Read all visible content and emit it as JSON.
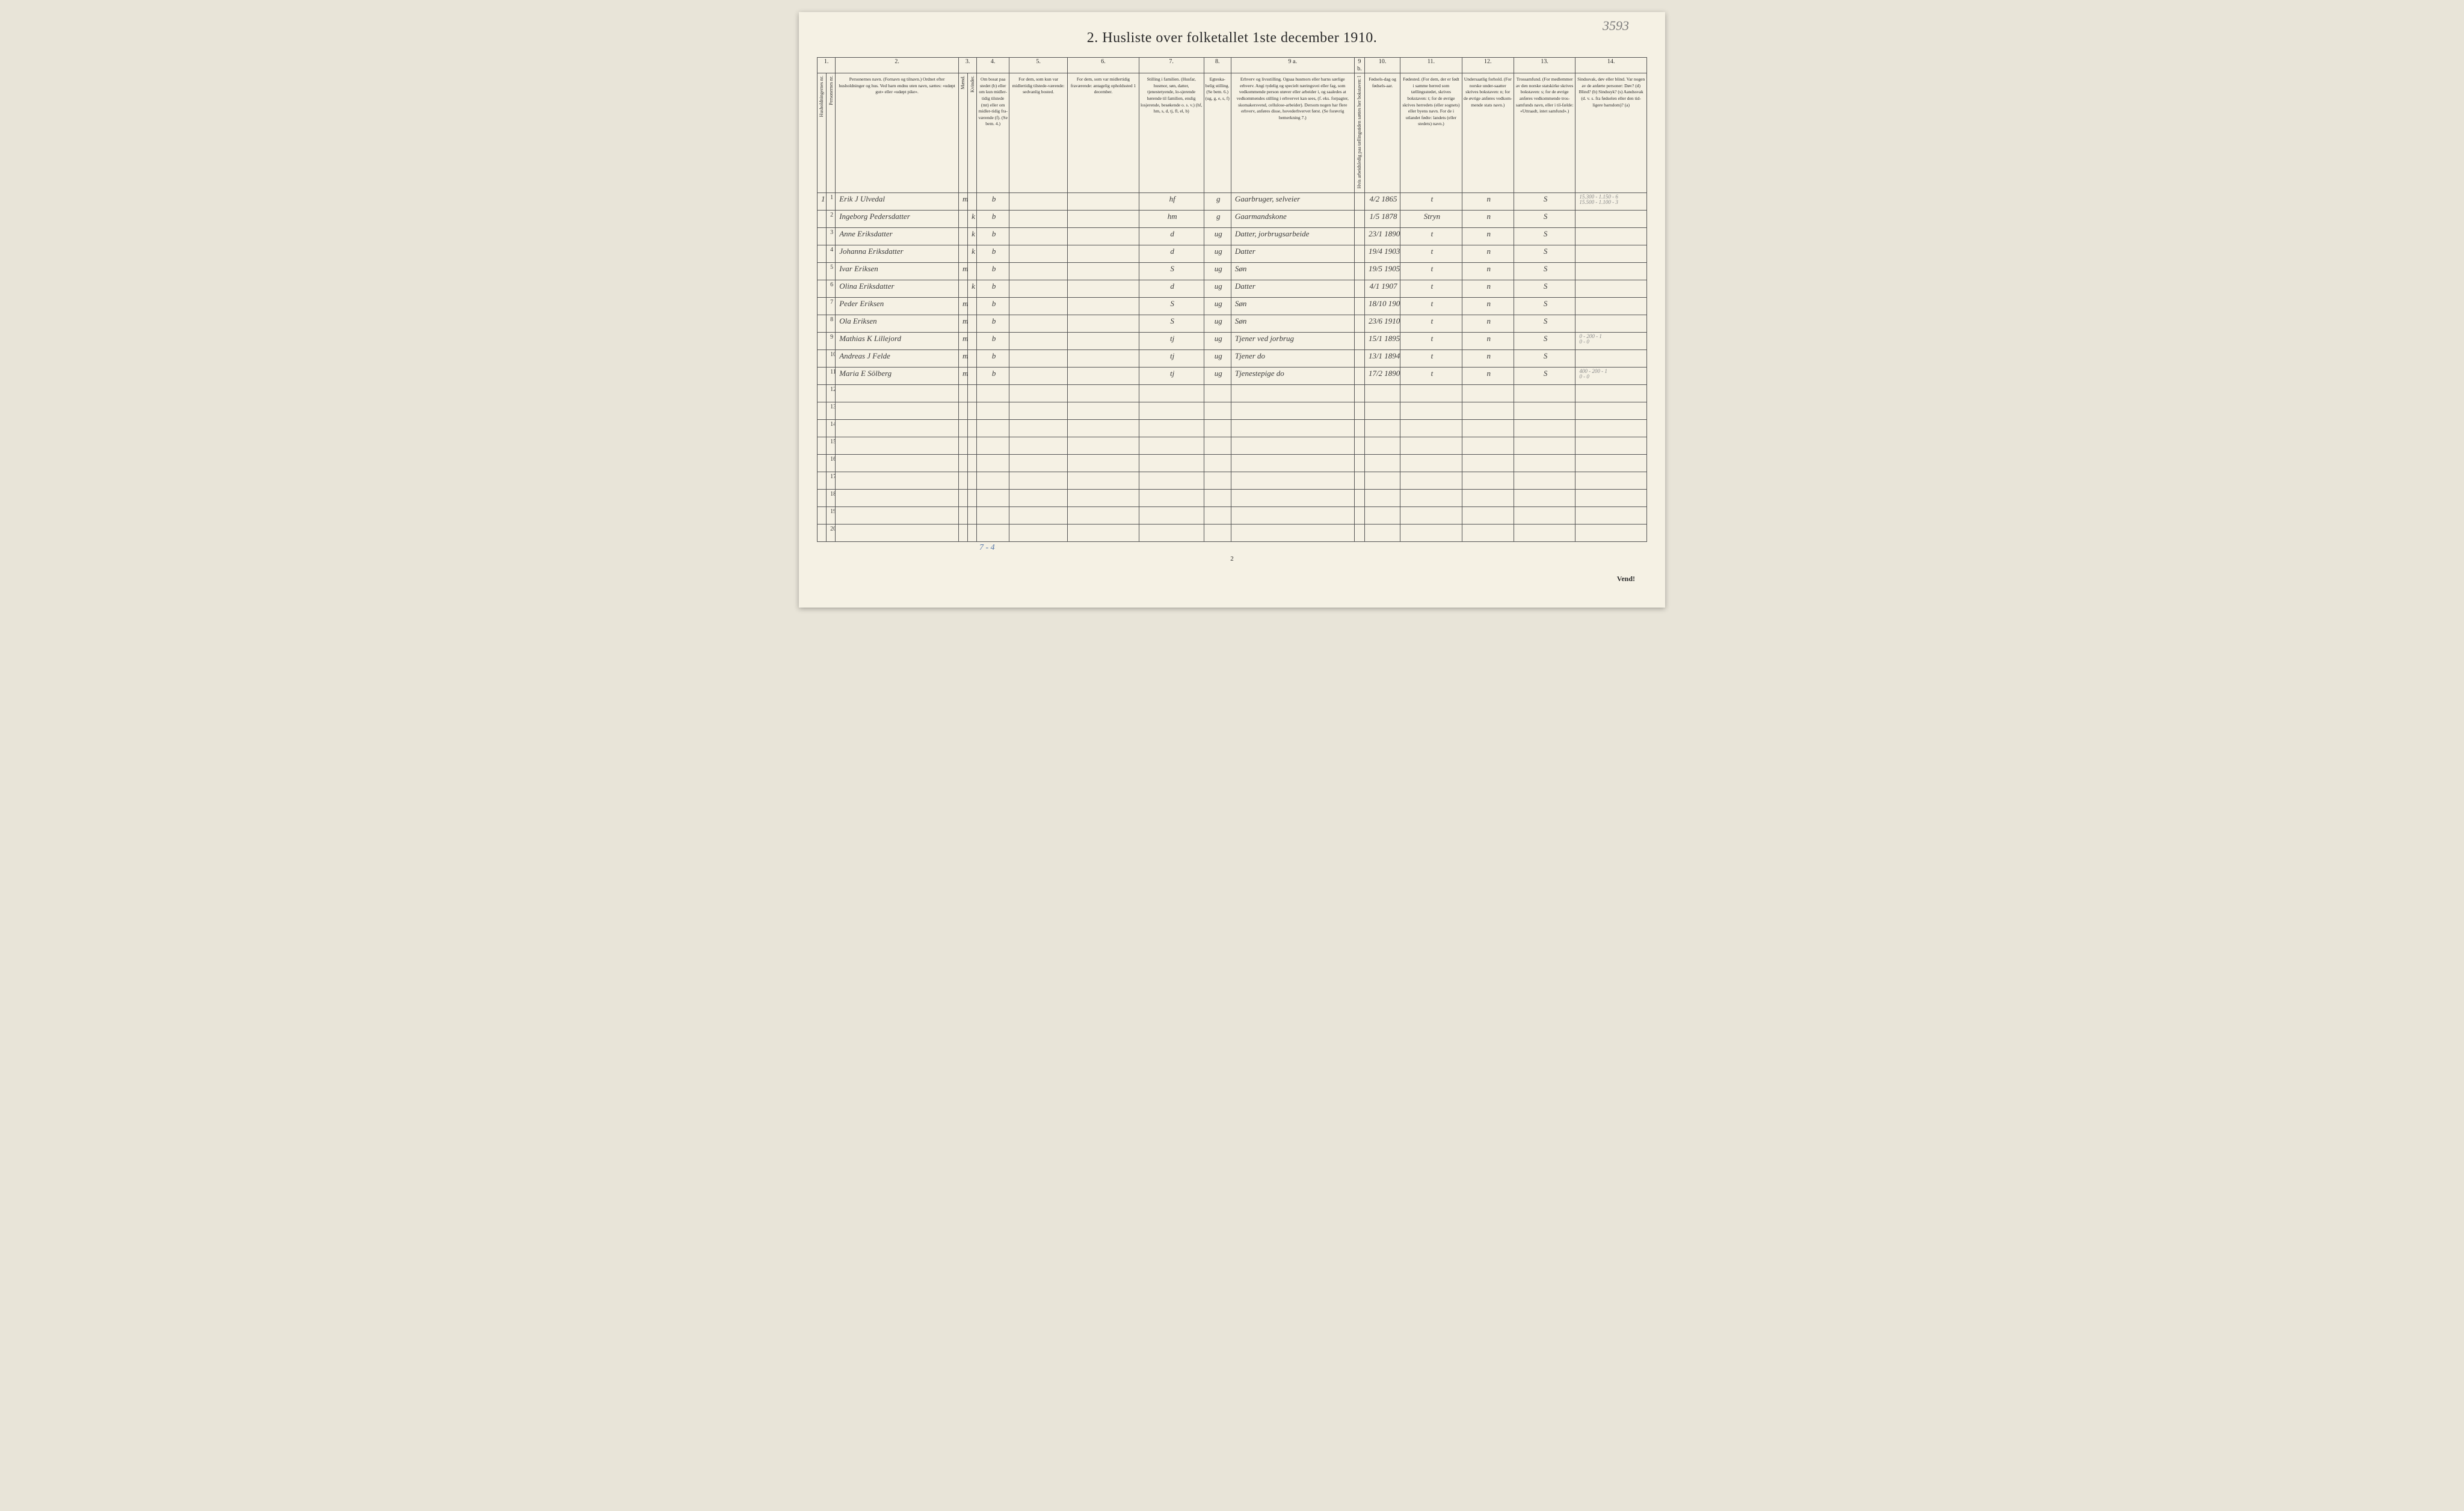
{
  "page_annotation": "3593",
  "title": "2.  Husliste over folketallet 1ste december 1910.",
  "column_numbers": [
    "1.",
    "2.",
    "3.",
    "4.",
    "5.",
    "6.",
    "7.",
    "8.",
    "9 a.",
    "9 b.",
    "10.",
    "11.",
    "12.",
    "13.",
    "14."
  ],
  "headers": {
    "c1a": "Husholdningernes nr.",
    "c1b": "Personernes nr.",
    "c2": "Personernes navn.\n(Fornavn og tilnavn.)\nOrdnet efter husholdninger og hus.\nVed barn endnu uten navn, sættes: «udøpt gut» eller «udøpt pike».",
    "c3": "Kjøn.",
    "c3a": "Mænd.",
    "c3b": "Kvinder.",
    "c3sub": "m.  k.",
    "c4": "Om bosat paa stedet (b) eller om kun midler-tidig tilstede (mt) eller om midler-tidig fra-værende (f). (Se bem. 4.)",
    "c5": "For dem, som kun var midlertidig tilstede-værende:\nsedvanlig bosted.",
    "c6": "For dem, som var midlertidig fraværende:\nantagelig opholdssted 1 december.",
    "c7": "Stilling i familien.\n(Husfar, husmor, søn, datter, tjenestetyende, lo-sjerende hørende til familien, enslig losjerende, besøkende o. s. v.)\n(hf, hm, s, d, tj, fl, el, b)",
    "c8": "Egteska-belig stilling.\n(Se bem. 6.)\n(ug, g, e, s, f)",
    "c9a": "Erhverv og livsstilling.\nOgsaa husmors eller barns særlige erhverv. Angi tydelig og specielt næringsvei eller fag, som vedkommende person utøver eller arbeider i, og saaledes at vedkommendes stilling i erhvervet kan sees, (f. eks. forpagter, skomakersvend, cellulose-arbeider). Dersom nogen har flere erhverv, anføres disse, hovederhvervet først.\n(Se forøvrig bemerkning 7.)",
    "c9b": "Hvis arbeidsledig paa tællingstiden sættes her bokstaven: l",
    "c10": "Fødsels-dag og fødsels-aar.",
    "c11": "Fødested.\n(For dem, der er født i samme herred som tællingsstedet, skrives bokstaven: t; for de øvrige skrives herredets (eller sognets) eller byens navn. For de i utlandet fødte: landets (eller stedets) navn.)",
    "c12": "Undersaatlig forhold.\n(For norske under-saatter skrives bokstaven: n; for de øvrige anføres vedkom-mende stats navn.)",
    "c13": "Trossamfund.\n(For medlemmer av den norske statskirke skrives bokstaven: s; for de øvrige anføres vedkommende tros-samfunds navn, eller i til-fælde: «Uttraadt, intet samfund».)",
    "c14": "Sindssvak, døv eller blind.\nVar nogen av de anførte personer:\nDøv?    (d)\nBlind?   (b)\nSindssyk? (s)\nAandssvak (d. v. s. fra fødselen eller den tid-ligere barndom)? (a)"
  },
  "rows": [
    {
      "h": "1",
      "n": "1",
      "name": "Erik J Ulvedal",
      "sex": "m",
      "res": "b",
      "fam": "hf",
      "mar": "g",
      "occ": "Gaarbruger, selveier",
      "birth": "4/2 1865",
      "place": "t",
      "nat": "n",
      "rel": "S",
      "note": "15.300 - 1.150 - 6\n15.500 - 1.100 - 3"
    },
    {
      "h": "",
      "n": "2",
      "name": "Ingeborg Pedersdatter",
      "sex": "k",
      "res": "b",
      "fam": "hm",
      "mar": "g",
      "occ": "Gaarmandskone",
      "birth": "1/5 1878",
      "place": "Stryn",
      "nat": "n",
      "rel": "S",
      "note": ""
    },
    {
      "h": "",
      "n": "3",
      "name": "Anne Eriksdatter",
      "sex": "k",
      "res": "b",
      "fam": "d",
      "mar": "ug",
      "occ": "Datter, jorbrugsarbeide",
      "birth": "23/1 1890",
      "place": "t",
      "nat": "n",
      "rel": "S",
      "note": ""
    },
    {
      "h": "",
      "n": "4",
      "name": "Johanna Eriksdatter",
      "sex": "k",
      "res": "b",
      "fam": "d",
      "mar": "ug",
      "occ": "Datter",
      "birth": "19/4 1903",
      "place": "t",
      "nat": "n",
      "rel": "S",
      "note": ""
    },
    {
      "h": "",
      "n": "5",
      "name": "Ivar Eriksen",
      "sex": "m",
      "res": "b",
      "fam": "S",
      "mar": "ug",
      "occ": "Søn",
      "birth": "19/5 1905",
      "place": "t",
      "nat": "n",
      "rel": "S",
      "note": ""
    },
    {
      "h": "",
      "n": "6",
      "name": "Olina Eriksdatter",
      "sex": "k",
      "res": "b",
      "fam": "d",
      "mar": "ug",
      "occ": "Datter",
      "birth": "4/1 1907",
      "place": "t",
      "nat": "n",
      "rel": "S",
      "note": ""
    },
    {
      "h": "",
      "n": "7",
      "name": "Peder Eriksen",
      "sex": "m",
      "res": "b",
      "fam": "S",
      "mar": "ug",
      "occ": "Søn",
      "birth": "18/10 1908",
      "place": "t",
      "nat": "n",
      "rel": "S",
      "note": ""
    },
    {
      "h": "",
      "n": "8",
      "name": "Ola Eriksen",
      "sex": "m",
      "res": "b",
      "fam": "S",
      "mar": "ug",
      "occ": "Søn",
      "birth": "23/6 1910",
      "place": "t",
      "nat": "n",
      "rel": "S",
      "note": ""
    },
    {
      "h": "",
      "n": "9",
      "name": "Mathias K Lillejord",
      "sex": "m",
      "res": "b",
      "fam": "tj",
      "mar": "ug",
      "occ": "Tjener ved jorbrug",
      "birth": "15/1 1895",
      "place": "t",
      "nat": "n",
      "rel": "S",
      "note": "0 - 200 - 1\n0 - 0"
    },
    {
      "h": "",
      "n": "10",
      "name": "Andreas J Felde",
      "sex": "m",
      "res": "b",
      "fam": "tj",
      "mar": "ug",
      "occ": "Tjener   do",
      "birth": "13/1 1894",
      "place": "t",
      "nat": "n",
      "rel": "S",
      "note": ""
    },
    {
      "h": "",
      "n": "11",
      "name": "Maria E Sölberg",
      "sex": "m",
      "res": "b",
      "fam": "tj",
      "mar": "ug",
      "occ": "Tjenestepige do",
      "birth": "17/2 1890",
      "place": "t",
      "nat": "n",
      "rel": "S",
      "note": "400 - 200 - 1\n0 - 0"
    },
    {
      "h": "",
      "n": "12",
      "name": "",
      "sex": "",
      "res": "",
      "fam": "",
      "mar": "",
      "occ": "",
      "birth": "",
      "place": "",
      "nat": "",
      "rel": "",
      "note": ""
    },
    {
      "h": "",
      "n": "13",
      "name": "",
      "sex": "",
      "res": "",
      "fam": "",
      "mar": "",
      "occ": "",
      "birth": "",
      "place": "",
      "nat": "",
      "rel": "",
      "note": ""
    },
    {
      "h": "",
      "n": "14",
      "name": "",
      "sex": "",
      "res": "",
      "fam": "",
      "mar": "",
      "occ": "",
      "birth": "",
      "place": "",
      "nat": "",
      "rel": "",
      "note": ""
    },
    {
      "h": "",
      "n": "15",
      "name": "",
      "sex": "",
      "res": "",
      "fam": "",
      "mar": "",
      "occ": "",
      "birth": "",
      "place": "",
      "nat": "",
      "rel": "",
      "note": ""
    },
    {
      "h": "",
      "n": "16",
      "name": "",
      "sex": "",
      "res": "",
      "fam": "",
      "mar": "",
      "occ": "",
      "birth": "",
      "place": "",
      "nat": "",
      "rel": "",
      "note": ""
    },
    {
      "h": "",
      "n": "17",
      "name": "",
      "sex": "",
      "res": "",
      "fam": "",
      "mar": "",
      "occ": "",
      "birth": "",
      "place": "",
      "nat": "",
      "rel": "",
      "note": ""
    },
    {
      "h": "",
      "n": "18",
      "name": "",
      "sex": "",
      "res": "",
      "fam": "",
      "mar": "",
      "occ": "",
      "birth": "",
      "place": "",
      "nat": "",
      "rel": "",
      "note": ""
    },
    {
      "h": "",
      "n": "19",
      "name": "",
      "sex": "",
      "res": "",
      "fam": "",
      "mar": "",
      "occ": "",
      "birth": "",
      "place": "",
      "nat": "",
      "rel": "",
      "note": ""
    },
    {
      "h": "",
      "n": "20",
      "name": "",
      "sex": "",
      "res": "",
      "fam": "",
      "mar": "",
      "occ": "",
      "birth": "",
      "place": "",
      "nat": "",
      "rel": "",
      "note": ""
    }
  ],
  "bottom_annotation": "7 - 4",
  "footer_page": "2",
  "vend": "Vend!",
  "col_widths": {
    "c1a": 14,
    "c1b": 14,
    "c2": 190,
    "c3a": 14,
    "c3b": 14,
    "c4": 50,
    "c5": 90,
    "c6": 110,
    "c7": 100,
    "c8": 42,
    "c9a": 190,
    "c9b": 16,
    "c10": 55,
    "c11": 95,
    "c12": 80,
    "c13": 95,
    "c14": 110
  },
  "colors": {
    "paper": "#f5f1e4",
    "ink": "#2a2a2a",
    "pencil": "#888888",
    "border": "#555555",
    "blue_pencil": "#5a7aaa"
  }
}
